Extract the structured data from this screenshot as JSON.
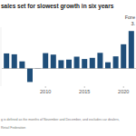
{
  "chart_data": {
    "type": "bar",
    "title": "sales set for slowest growth in six years",
    "x": [
      2005,
      2006,
      2007,
      2008,
      2009,
      2010,
      2011,
      2012,
      2013,
      2014,
      2015,
      2016,
      2017,
      2018,
      2019,
      2020,
      2021
    ],
    "values": [
      5.1,
      4.8,
      2.4,
      -4.6,
      -0.1,
      5.2,
      4.7,
      2.8,
      3.0,
      4.0,
      3.2,
      3.6,
      5.3,
      2.1,
      4.1,
      8.2,
      12.7
    ],
    "color": "#1f4e79",
    "xlim": [
      2004.4,
      2021.6
    ],
    "xticks": [
      2010,
      2015,
      2020
    ],
    "ylim": [
      -6,
      14
    ],
    "tick_labels": "x",
    "annotations": [
      "Fore",
      "3.",
      "g is defined as the months of November and December, and excludes car dealers,",
      "Retail Federation"
    ]
  }
}
